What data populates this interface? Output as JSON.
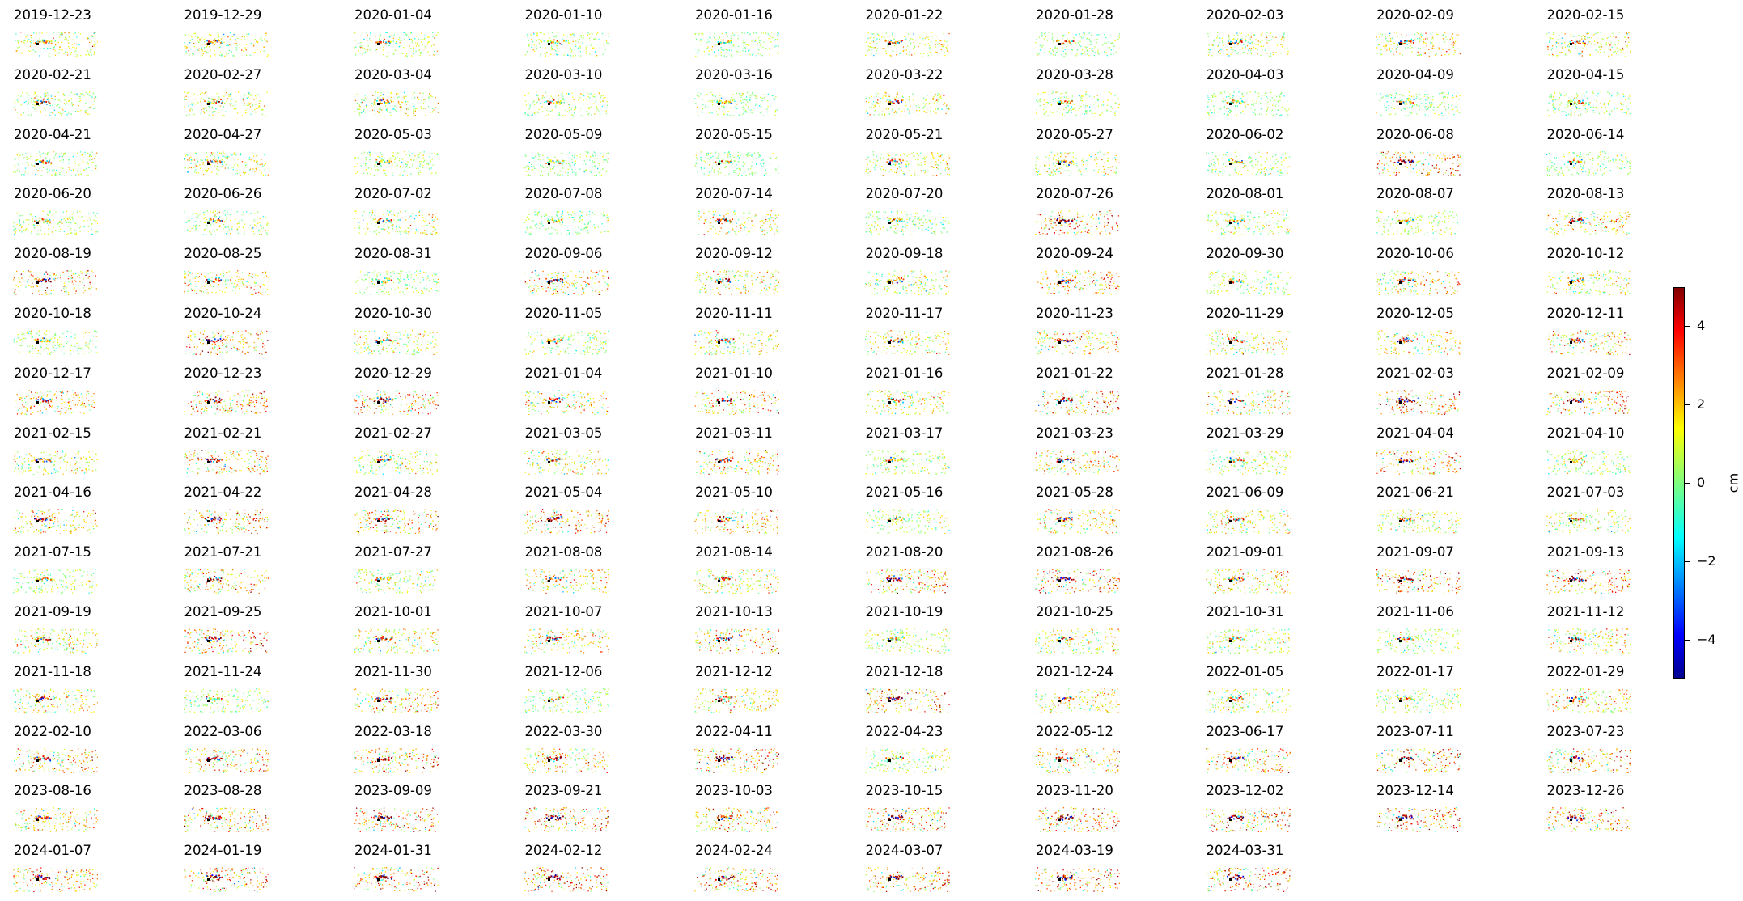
{
  "chart_data": {
    "type": "heatmap",
    "description_units": "cm",
    "colormap": "jet",
    "clim": [
      -5,
      5
    ],
    "colorbar": {
      "label": "cm",
      "ticks": [
        -4,
        -2,
        0,
        2,
        4
      ],
      "tick_labels": [
        "−4",
        "−2",
        "0",
        "2",
        "4"
      ]
    },
    "panels": [
      {
        "date": "2019-12-23",
        "bias": 1.2
      },
      {
        "date": "2019-12-29",
        "bias": 1.3
      },
      {
        "date": "2020-01-04",
        "bias": 0.9
      },
      {
        "date": "2020-01-10",
        "bias": 0.6
      },
      {
        "date": "2020-01-16",
        "bias": 0.3
      },
      {
        "date": "2020-01-22",
        "bias": 1.2
      },
      {
        "date": "2020-01-28",
        "bias": 0.3
      },
      {
        "date": "2020-02-03",
        "bias": 1.0
      },
      {
        "date": "2020-02-09",
        "bias": 1.6
      },
      {
        "date": "2020-02-15",
        "bias": 1.4
      },
      {
        "date": "2020-02-21",
        "bias": 1.0
      },
      {
        "date": "2020-02-27",
        "bias": 1.1
      },
      {
        "date": "2020-03-04",
        "bias": 1.2
      },
      {
        "date": "2020-03-10",
        "bias": 0.7
      },
      {
        "date": "2020-03-16",
        "bias": 0.2
      },
      {
        "date": "2020-03-22",
        "bias": 1.5
      },
      {
        "date": "2020-03-28",
        "bias": 0.6
      },
      {
        "date": "2020-04-03",
        "bias": 0.3
      },
      {
        "date": "2020-04-09",
        "bias": 0.5
      },
      {
        "date": "2020-04-15",
        "bias": 0.6
      },
      {
        "date": "2020-04-21",
        "bias": 0.8
      },
      {
        "date": "2020-04-27",
        "bias": 1.1
      },
      {
        "date": "2020-05-03",
        "bias": 0.4
      },
      {
        "date": "2020-05-09",
        "bias": 0.3
      },
      {
        "date": "2020-05-15",
        "bias": 0.2
      },
      {
        "date": "2020-05-21",
        "bias": 1.2
      },
      {
        "date": "2020-05-27",
        "bias": 1.2
      },
      {
        "date": "2020-06-02",
        "bias": 0.7
      },
      {
        "date": "2020-06-08",
        "bias": 3.0
      },
      {
        "date": "2020-06-14",
        "bias": 0.4
      },
      {
        "date": "2020-06-20",
        "bias": 0.6
      },
      {
        "date": "2020-06-26",
        "bias": 0.6
      },
      {
        "date": "2020-07-02",
        "bias": 1.2
      },
      {
        "date": "2020-07-08",
        "bias": 0.2
      },
      {
        "date": "2020-07-14",
        "bias": 1.6
      },
      {
        "date": "2020-07-20",
        "bias": 0.3
      },
      {
        "date": "2020-07-26",
        "bias": 3.0
      },
      {
        "date": "2020-08-01",
        "bias": 0.8
      },
      {
        "date": "2020-08-07",
        "bias": 0.5
      },
      {
        "date": "2020-08-13",
        "bias": 1.8
      },
      {
        "date": "2020-08-19",
        "bias": 2.5
      },
      {
        "date": "2020-08-25",
        "bias": 1.8
      },
      {
        "date": "2020-08-31",
        "bias": 0.4
      },
      {
        "date": "2020-09-06",
        "bias": 2.2
      },
      {
        "date": "2020-09-12",
        "bias": 1.5
      },
      {
        "date": "2020-09-18",
        "bias": 1.0
      },
      {
        "date": "2020-09-24",
        "bias": 2.5
      },
      {
        "date": "2020-09-30",
        "bias": 0.5
      },
      {
        "date": "2020-10-06",
        "bias": 1.8
      },
      {
        "date": "2020-10-12",
        "bias": 1.2
      },
      {
        "date": "2020-10-18",
        "bias": 0.5
      },
      {
        "date": "2020-10-24",
        "bias": 2.8
      },
      {
        "date": "2020-10-30",
        "bias": 1.2
      },
      {
        "date": "2020-11-05",
        "bias": 0.6
      },
      {
        "date": "2020-11-11",
        "bias": 1.5
      },
      {
        "date": "2020-11-17",
        "bias": 1.5
      },
      {
        "date": "2020-11-23",
        "bias": 2.2
      },
      {
        "date": "2020-11-29",
        "bias": 1.3
      },
      {
        "date": "2020-12-05",
        "bias": 1.6
      },
      {
        "date": "2020-12-11",
        "bias": 2.0
      },
      {
        "date": "2020-12-17",
        "bias": 2.2
      },
      {
        "date": "2020-12-23",
        "bias": 2.6
      },
      {
        "date": "2020-12-29",
        "bias": 2.8
      },
      {
        "date": "2021-01-04",
        "bias": 1.8
      },
      {
        "date": "2021-01-10",
        "bias": 2.5
      },
      {
        "date": "2021-01-16",
        "bias": 1.5
      },
      {
        "date": "2021-01-22",
        "bias": 2.8
      },
      {
        "date": "2021-01-28",
        "bias": 2.0
      },
      {
        "date": "2021-02-03",
        "bias": 3.2
      },
      {
        "date": "2021-02-09",
        "bias": 2.8
      },
      {
        "date": "2021-02-15",
        "bias": 1.5
      },
      {
        "date": "2021-02-21",
        "bias": 2.8
      },
      {
        "date": "2021-02-27",
        "bias": 1.2
      },
      {
        "date": "2021-03-05",
        "bias": 1.5
      },
      {
        "date": "2021-03-11",
        "bias": 2.2
      },
      {
        "date": "2021-03-17",
        "bias": 0.6
      },
      {
        "date": "2021-03-23",
        "bias": 2.5
      },
      {
        "date": "2021-03-29",
        "bias": 0.8
      },
      {
        "date": "2021-04-04",
        "bias": 2.6
      },
      {
        "date": "2021-04-10",
        "bias": 0.6
      },
      {
        "date": "2021-04-16",
        "bias": 2.0
      },
      {
        "date": "2021-04-22",
        "bias": 2.5
      },
      {
        "date": "2021-04-28",
        "bias": 2.8
      },
      {
        "date": "2021-05-04",
        "bias": 2.8
      },
      {
        "date": "2021-05-10",
        "bias": 2.2
      },
      {
        "date": "2021-05-16",
        "bias": 0.5
      },
      {
        "date": "2021-05-28",
        "bias": 1.8
      },
      {
        "date": "2021-06-09",
        "bias": 1.5
      },
      {
        "date": "2021-06-21",
        "bias": 1.0
      },
      {
        "date": "2021-07-03",
        "bias": 1.0
      },
      {
        "date": "2021-07-15",
        "bias": 0.5
      },
      {
        "date": "2021-07-21",
        "bias": 2.5
      },
      {
        "date": "2021-07-27",
        "bias": 0.6
      },
      {
        "date": "2021-08-08",
        "bias": 1.8
      },
      {
        "date": "2021-08-14",
        "bias": 1.5
      },
      {
        "date": "2021-08-20",
        "bias": 2.8
      },
      {
        "date": "2021-08-26",
        "bias": 3.2
      },
      {
        "date": "2021-09-01",
        "bias": 1.8
      },
      {
        "date": "2021-09-07",
        "bias": 2.8
      },
      {
        "date": "2021-09-13",
        "bias": 2.8
      },
      {
        "date": "2021-09-19",
        "bias": 1.5
      },
      {
        "date": "2021-09-25",
        "bias": 3.2
      },
      {
        "date": "2021-10-01",
        "bias": 1.5
      },
      {
        "date": "2021-10-07",
        "bias": 2.0
      },
      {
        "date": "2021-10-13",
        "bias": 2.5
      },
      {
        "date": "2021-10-19",
        "bias": 0.6
      },
      {
        "date": "2021-10-25",
        "bias": 1.5
      },
      {
        "date": "2021-10-31",
        "bias": 1.0
      },
      {
        "date": "2021-11-06",
        "bias": 0.8
      },
      {
        "date": "2021-11-12",
        "bias": 1.8
      },
      {
        "date": "2021-11-18",
        "bias": 1.8
      },
      {
        "date": "2021-11-24",
        "bias": 0.5
      },
      {
        "date": "2021-11-30",
        "bias": 2.2
      },
      {
        "date": "2021-12-06",
        "bias": 0.3
      },
      {
        "date": "2021-12-12",
        "bias": 1.5
      },
      {
        "date": "2021-12-18",
        "bias": 3.2
      },
      {
        "date": "2021-12-24",
        "bias": 1.5
      },
      {
        "date": "2022-01-05",
        "bias": 1.2
      },
      {
        "date": "2022-01-17",
        "bias": 0.8
      },
      {
        "date": "2022-01-29",
        "bias": 2.0
      },
      {
        "date": "2022-02-10",
        "bias": 2.5
      },
      {
        "date": "2022-03-06",
        "bias": 2.6
      },
      {
        "date": "2022-03-18",
        "bias": 2.8
      },
      {
        "date": "2022-03-30",
        "bias": 2.2
      },
      {
        "date": "2022-04-11",
        "bias": 3.2
      },
      {
        "date": "2022-04-23",
        "bias": 0.8
      },
      {
        "date": "2022-05-12",
        "bias": 2.0
      },
      {
        "date": "2023-06-17",
        "bias": 2.5
      },
      {
        "date": "2023-07-11",
        "bias": 3.0
      },
      {
        "date": "2023-07-23",
        "bias": 2.6
      },
      {
        "date": "2023-08-16",
        "bias": 1.8
      },
      {
        "date": "2023-08-28",
        "bias": 2.6
      },
      {
        "date": "2023-09-09",
        "bias": 3.2
      },
      {
        "date": "2023-09-21",
        "bias": 3.2
      },
      {
        "date": "2023-10-03",
        "bias": 2.2
      },
      {
        "date": "2023-10-15",
        "bias": 3.2
      },
      {
        "date": "2023-11-20",
        "bias": 3.2
      },
      {
        "date": "2023-12-02",
        "bias": 3.2
      },
      {
        "date": "2023-12-14",
        "bias": 3.2
      },
      {
        "date": "2023-12-26",
        "bias": 3.0
      },
      {
        "date": "2024-01-07",
        "bias": 2.8
      },
      {
        "date": "2024-01-19",
        "bias": 3.2
      },
      {
        "date": "2024-01-31",
        "bias": 3.2
      },
      {
        "date": "2024-02-12",
        "bias": 3.2
      },
      {
        "date": "2024-02-24",
        "bias": 3.2
      },
      {
        "date": "2024-03-07",
        "bias": 3.2
      },
      {
        "date": "2024-03-19",
        "bias": 3.2
      },
      {
        "date": "2024-03-31",
        "bias": 3.2
      }
    ]
  }
}
